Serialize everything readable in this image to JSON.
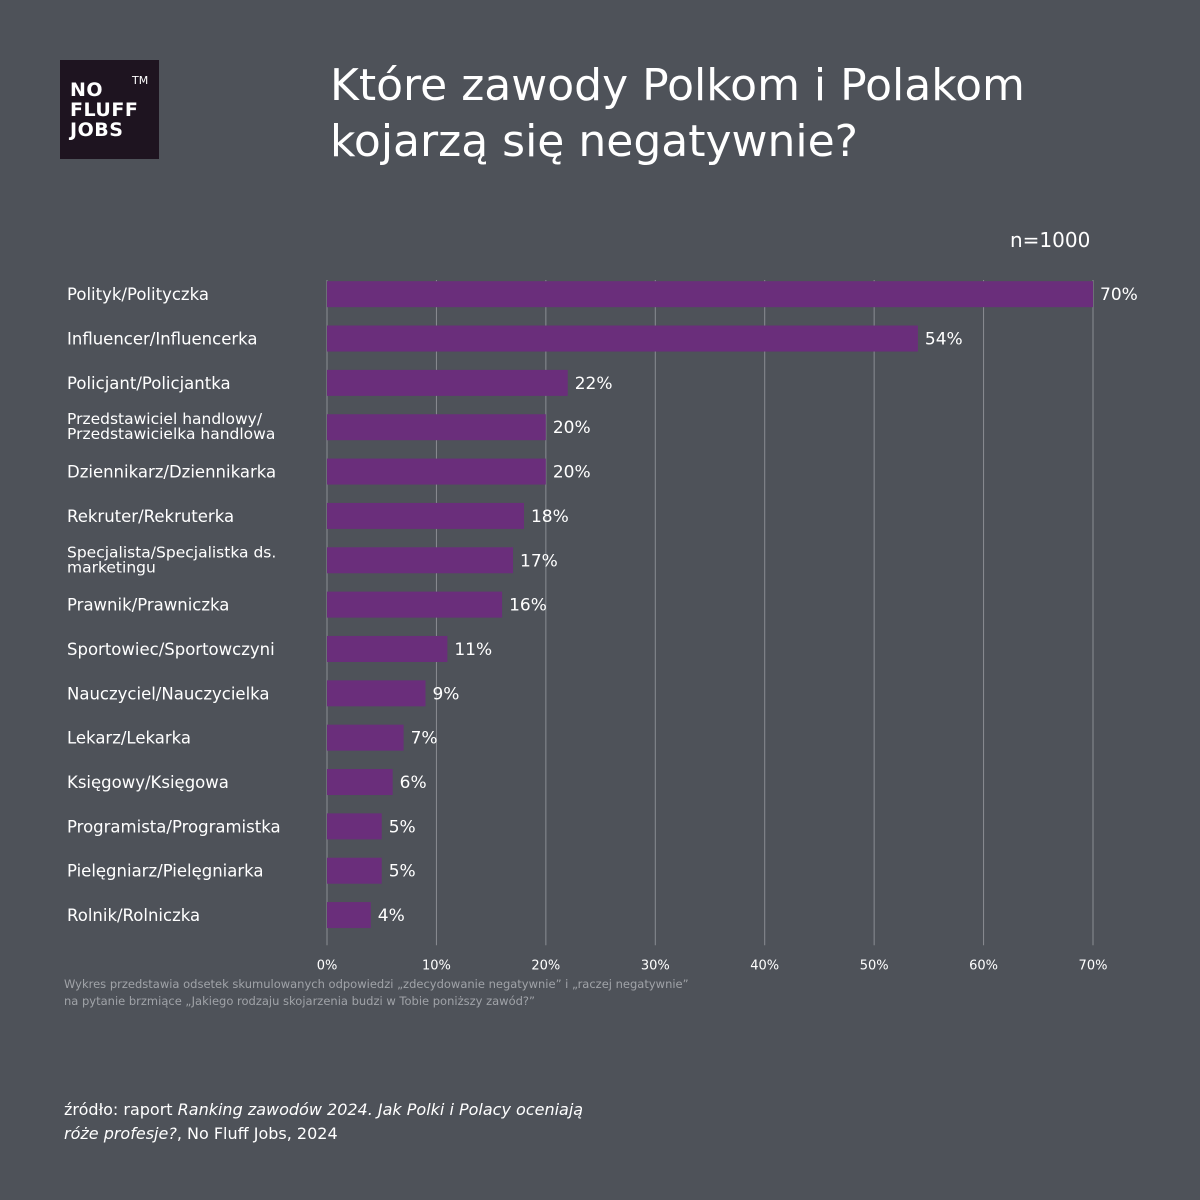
{
  "logo": {
    "line1": "NO",
    "line2": "FLUFF",
    "line3": "JOBS",
    "tm": "TM"
  },
  "title": {
    "line1": "Które zawody Polkom i Polakom",
    "line2": "kojarzą się negatywnie?"
  },
  "sample": "n=1000",
  "chart_data": {
    "type": "bar",
    "orientation": "horizontal",
    "title": "Które zawody Polkom i Polakom kojarzą się negatywnie?",
    "categories": [
      [
        "Polityk/Polityczka"
      ],
      [
        "Influencer/Influencerka"
      ],
      [
        "Policjant/Policjantka"
      ],
      [
        "Przedstawiciel handlowy/",
        "Przedstawicielka handlowa"
      ],
      [
        "Dziennikarz/Dziennikarka"
      ],
      [
        "Rekruter/Rekruterka"
      ],
      [
        "Specjalista/Specjalistka ds.",
        "marketingu"
      ],
      [
        "Prawnik/Prawniczka"
      ],
      [
        "Sportowiec/Sportowczyni"
      ],
      [
        "Nauczyciel/Nauczycielka"
      ],
      [
        "Lekarz/Lekarka"
      ],
      [
        "Księgowy/Księgowa"
      ],
      [
        "Programista/Programistka"
      ],
      [
        "Pielęgniarz/Pielęgniarka"
      ],
      [
        "Rolnik/Rolniczka"
      ]
    ],
    "values": [
      70,
      54,
      22,
      20,
      20,
      18,
      17,
      16,
      11,
      9,
      7,
      6,
      5,
      5,
      4
    ],
    "value_labels": [
      "70%",
      "54%",
      "22%",
      "20%",
      "20%",
      "18%",
      "17%",
      "16%",
      "11%",
      "9%",
      "7%",
      "6%",
      "5%",
      "5%",
      "4%"
    ],
    "xlim": [
      0,
      70
    ],
    "xticks": [
      "0%",
      "10%",
      "20%",
      "30%",
      "40%",
      "50%",
      "60%",
      "70%"
    ],
    "grid": true,
    "bar_color": "#6a2e7b"
  },
  "note": {
    "line1": "Wykres przedstawia odsetek skumulowanych odpowiedzi „zdecydowanie negatywnie” i „raczej negatywnie”",
    "line2": "na pytanie brzmiące „Jakiego rodzaju skojarzenia budzi w Tobie poniższy zawód?”"
  },
  "source": {
    "prefix": "źródło: raport ",
    "title1": "Ranking zawodów 2024. Jak Polki i Polacy oceniają",
    "title2": "róże profesje?",
    "suffix": ", No Fluff Jobs, 2024"
  }
}
